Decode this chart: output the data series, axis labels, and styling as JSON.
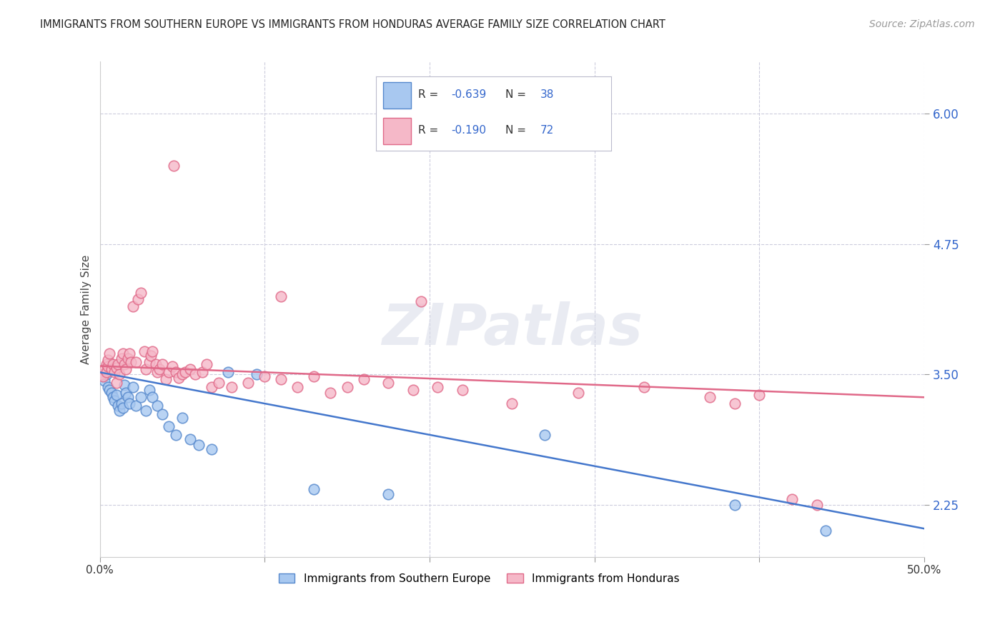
{
  "title": "IMMIGRANTS FROM SOUTHERN EUROPE VS IMMIGRANTS FROM HONDURAS AVERAGE FAMILY SIZE CORRELATION CHART",
  "source": "Source: ZipAtlas.com",
  "ylabel": "Average Family Size",
  "yticks": [
    2.25,
    3.5,
    4.75,
    6.0
  ],
  "xlim": [
    0.0,
    0.5
  ],
  "ylim": [
    1.75,
    6.5
  ],
  "blue_R": "-0.639",
  "blue_N": "38",
  "pink_R": "-0.190",
  "pink_N": "72",
  "blue_fill": "#a8c8f0",
  "pink_fill": "#f5b8c8",
  "blue_edge": "#5588cc",
  "pink_edge": "#e06888",
  "blue_line": "#4477cc",
  "pink_line": "#e06888",
  "legend_R_N_color": "#3366cc",
  "legend_label_blue": "Immigrants from Southern Europe",
  "legend_label_pink": "Immigrants from Honduras",
  "watermark_text": "ZIPatlas",
  "background_color": "#ffffff",
  "grid_color": "#ccccdd",
  "title_color": "#222222",
  "ylabel_color": "#444444",
  "ytick_color": "#3366cc",
  "blue_x": [
    0.002,
    0.003,
    0.004,
    0.005,
    0.006,
    0.007,
    0.008,
    0.009,
    0.01,
    0.011,
    0.012,
    0.013,
    0.014,
    0.015,
    0.016,
    0.017,
    0.018,
    0.02,
    0.022,
    0.025,
    0.028,
    0.03,
    0.032,
    0.035,
    0.038,
    0.042,
    0.046,
    0.05,
    0.055,
    0.06,
    0.068,
    0.078,
    0.095,
    0.13,
    0.175,
    0.27,
    0.385,
    0.44
  ],
  "blue_y": [
    3.48,
    3.44,
    3.5,
    3.38,
    3.35,
    3.32,
    3.28,
    3.25,
    3.3,
    3.2,
    3.15,
    3.22,
    3.18,
    3.4,
    3.32,
    3.28,
    3.22,
    3.38,
    3.2,
    3.28,
    3.15,
    3.35,
    3.28,
    3.2,
    3.12,
    3.0,
    2.92,
    3.08,
    2.88,
    2.82,
    2.78,
    3.52,
    3.5,
    2.4,
    2.35,
    2.92,
    2.25,
    2.0
  ],
  "pink_x": [
    0.001,
    0.002,
    0.003,
    0.004,
    0.004,
    0.005,
    0.005,
    0.006,
    0.007,
    0.008,
    0.009,
    0.01,
    0.01,
    0.011,
    0.012,
    0.013,
    0.014,
    0.015,
    0.016,
    0.017,
    0.018,
    0.019,
    0.02,
    0.022,
    0.023,
    0.025,
    0.027,
    0.028,
    0.03,
    0.031,
    0.032,
    0.034,
    0.035,
    0.036,
    0.038,
    0.04,
    0.042,
    0.044,
    0.046,
    0.048,
    0.05,
    0.052,
    0.055,
    0.058,
    0.062,
    0.065,
    0.068,
    0.072,
    0.08,
    0.09,
    0.1,
    0.11,
    0.12,
    0.13,
    0.14,
    0.15,
    0.16,
    0.175,
    0.19,
    0.205,
    0.22,
    0.25,
    0.29,
    0.33,
    0.37,
    0.385,
    0.4,
    0.42,
    0.435,
    0.045,
    0.11,
    0.195
  ],
  "pink_y": [
    3.5,
    3.48,
    3.55,
    3.6,
    3.52,
    3.58,
    3.64,
    3.7,
    3.55,
    3.6,
    3.52,
    3.56,
    3.42,
    3.6,
    3.5,
    3.65,
    3.7,
    3.6,
    3.55,
    3.65,
    3.7,
    3.62,
    4.15,
    3.62,
    4.22,
    4.28,
    3.72,
    3.55,
    3.62,
    3.68,
    3.72,
    3.6,
    3.52,
    3.55,
    3.6,
    3.45,
    3.52,
    3.58,
    3.52,
    3.47,
    3.5,
    3.52,
    3.55,
    3.5,
    3.52,
    3.6,
    3.38,
    3.42,
    3.38,
    3.42,
    3.48,
    3.45,
    3.38,
    3.48,
    3.32,
    3.38,
    3.45,
    3.42,
    3.35,
    3.38,
    3.35,
    3.22,
    3.32,
    3.38,
    3.28,
    3.22,
    3.3,
    2.3,
    2.25,
    5.5,
    4.25,
    4.2
  ],
  "blue_trend_x0": 0.0,
  "blue_trend_x1": 0.5,
  "blue_trend_y0": 3.52,
  "blue_trend_y1": 2.02,
  "pink_trend_x0": 0.0,
  "pink_trend_x1": 0.5,
  "pink_trend_y0": 3.58,
  "pink_trend_y1": 3.28
}
